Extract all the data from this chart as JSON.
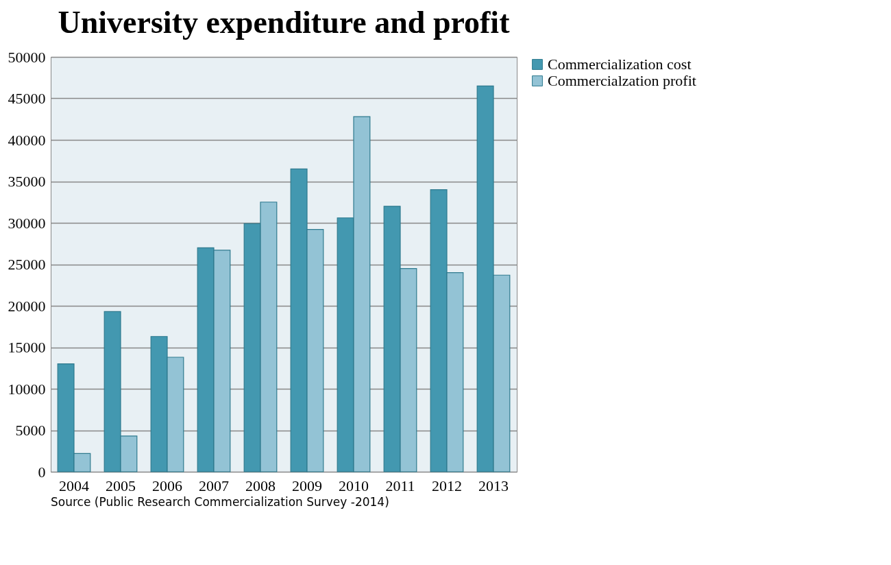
{
  "chart_data": {
    "type": "bar",
    "title": "University expenditure and profit",
    "categories": [
      "2004",
      "2005",
      "2006",
      "2007",
      "2008",
      "2009",
      "2010",
      "2011",
      "2012",
      "2013"
    ],
    "series": [
      {
        "name": "Commercialization cost",
        "color": "#4398b0",
        "values": [
          13000,
          19300,
          16300,
          27000,
          29900,
          36500,
          30600,
          32000,
          34000,
          46500
        ]
      },
      {
        "name": "Commercialzation profit",
        "color": "#93c3d5",
        "values": [
          2200,
          4300,
          13800,
          26700,
          32500,
          29200,
          42800,
          24500,
          24000,
          23700
        ]
      }
    ],
    "ylim": [
      0,
      50000
    ],
    "yticks": [
      0,
      5000,
      10000,
      15000,
      20000,
      25000,
      30000,
      35000,
      40000,
      45000,
      50000
    ],
    "grid": "y",
    "legend": "right",
    "annotations": [
      "Source (Public Research Commercialization Survey -2014)"
    ]
  }
}
